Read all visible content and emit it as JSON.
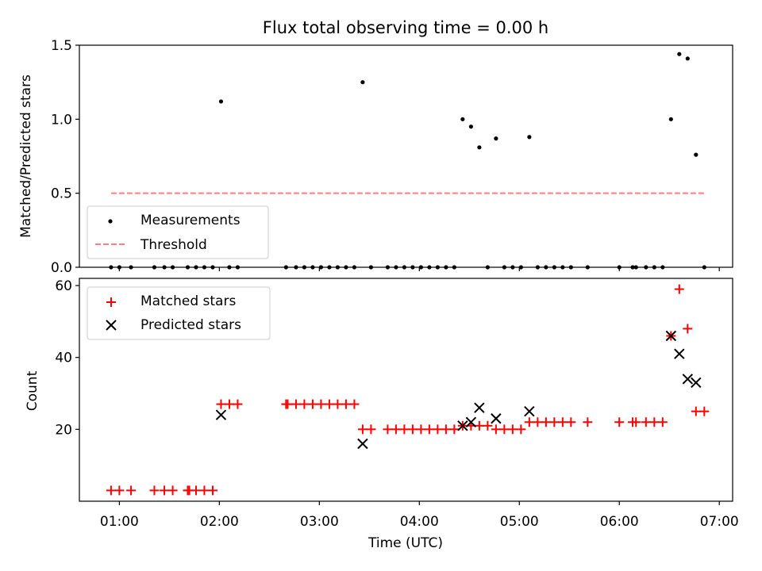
{
  "chart_data": [
    {
      "type": "scatter",
      "title": "Flux total observing time = 0.00 h",
      "xlabel": "",
      "ylabel": "Matched/Predicted stars",
      "xlim": [
        "00:36",
        "07:08"
      ],
      "ylim": [
        0,
        1.5
      ],
      "yticks": [
        0.0,
        0.5,
        1.0,
        1.5
      ],
      "ytick_labels": [
        "0.0",
        "0.5",
        "1.0",
        "1.5"
      ],
      "grid": false,
      "legend": "lower-left",
      "series": [
        {
          "name": "Measurements",
          "kind": "scatter",
          "marker": "dot",
          "color": "#000000",
          "points": [
            [
              "00:55",
              0
            ],
            [
              "01:00",
              0
            ],
            [
              "01:07",
              0
            ],
            [
              "01:21",
              0
            ],
            [
              "01:27",
              0
            ],
            [
              "01:32",
              0
            ],
            [
              "01:41",
              0
            ],
            [
              "01:46",
              0
            ],
            [
              "01:51",
              0
            ],
            [
              "01:56",
              0
            ],
            [
              "02:01",
              1.12
            ],
            [
              "02:06",
              0
            ],
            [
              "02:11",
              0
            ],
            [
              "02:40",
              0
            ],
            [
              "02:46",
              0
            ],
            [
              "02:51",
              0
            ],
            [
              "02:56",
              0
            ],
            [
              "03:01",
              0
            ],
            [
              "03:06",
              0
            ],
            [
              "03:11",
              0
            ],
            [
              "03:16",
              0
            ],
            [
              "03:21",
              0
            ],
            [
              "03:26",
              1.25
            ],
            [
              "03:31",
              0
            ],
            [
              "03:41",
              0
            ],
            [
              "03:46",
              0
            ],
            [
              "03:51",
              0
            ],
            [
              "03:56",
              0
            ],
            [
              "04:01",
              0
            ],
            [
              "04:06",
              0
            ],
            [
              "04:11",
              0
            ],
            [
              "04:16",
              0
            ],
            [
              "04:21",
              0
            ],
            [
              "04:26",
              1.0
            ],
            [
              "04:31",
              0.95
            ],
            [
              "04:36",
              0.81
            ],
            [
              "04:41",
              0
            ],
            [
              "04:46",
              0.87
            ],
            [
              "04:51",
              0
            ],
            [
              "04:56",
              0
            ],
            [
              "05:01",
              0
            ],
            [
              "05:06",
              0.88
            ],
            [
              "05:11",
              0
            ],
            [
              "05:16",
              0
            ],
            [
              "05:21",
              0
            ],
            [
              "05:26",
              0
            ],
            [
              "05:31",
              0
            ],
            [
              "05:41",
              0
            ],
            [
              "06:00",
              0
            ],
            [
              "06:08",
              0
            ],
            [
              "06:10",
              0
            ],
            [
              "06:16",
              0
            ],
            [
              "06:21",
              0
            ],
            [
              "06:26",
              0
            ],
            [
              "06:31",
              1.0
            ],
            [
              "06:36",
              1.44
            ],
            [
              "06:41",
              1.41
            ],
            [
              "06:46",
              0.76
            ],
            [
              "06:51",
              0
            ]
          ]
        },
        {
          "name": "Threshold",
          "kind": "line",
          "style": "dashed",
          "color": "#ff7f7f",
          "points": [
            [
              "00:55",
              0.5
            ],
            [
              "06:51",
              0.5
            ]
          ]
        }
      ]
    },
    {
      "type": "scatter",
      "title": "",
      "xlabel": "Time (UTC)",
      "ylabel": "Count",
      "xlim": [
        "00:36",
        "07:08"
      ],
      "ylim": [
        0,
        62
      ],
      "yticks": [
        20,
        40,
        60
      ],
      "ytick_labels": [
        "20",
        "40",
        "60"
      ],
      "xticks": [
        "01:00",
        "02:00",
        "03:00",
        "04:00",
        "05:00",
        "06:00",
        "07:00"
      ],
      "xtick_labels": [
        "01:00",
        "02:00",
        "03:00",
        "04:00",
        "05:00",
        "06:00",
        "07:00"
      ],
      "grid": false,
      "legend": "upper-left",
      "series": [
        {
          "name": "Matched stars",
          "kind": "scatter",
          "marker": "plus",
          "color": "#ff0000",
          "points": [
            [
              "00:55",
              3
            ],
            [
              "01:00",
              3
            ],
            [
              "01:07",
              3
            ],
            [
              "01:21",
              3
            ],
            [
              "01:27",
              3
            ],
            [
              "01:32",
              3
            ],
            [
              "01:41",
              3
            ],
            [
              "01:42",
              3
            ],
            [
              "01:46",
              3
            ],
            [
              "01:51",
              3
            ],
            [
              "01:56",
              3
            ],
            [
              "02:01",
              27
            ],
            [
              "02:06",
              27
            ],
            [
              "02:11",
              27
            ],
            [
              "02:40",
              27
            ],
            [
              "02:41",
              27
            ],
            [
              "02:46",
              27
            ],
            [
              "02:51",
              27
            ],
            [
              "02:56",
              27
            ],
            [
              "03:01",
              27
            ],
            [
              "03:06",
              27
            ],
            [
              "03:11",
              27
            ],
            [
              "03:16",
              27
            ],
            [
              "03:21",
              27
            ],
            [
              "03:26",
              20
            ],
            [
              "03:31",
              20
            ],
            [
              "03:41",
              20
            ],
            [
              "03:46",
              20
            ],
            [
              "03:51",
              20
            ],
            [
              "03:56",
              20
            ],
            [
              "04:01",
              20
            ],
            [
              "04:06",
              20
            ],
            [
              "04:11",
              20
            ],
            [
              "04:16",
              20
            ],
            [
              "04:21",
              20
            ],
            [
              "04:26",
              21
            ],
            [
              "04:31",
              21
            ],
            [
              "04:36",
              21
            ],
            [
              "04:41",
              21
            ],
            [
              "04:46",
              20
            ],
            [
              "04:51",
              20
            ],
            [
              "04:56",
              20
            ],
            [
              "05:01",
              20
            ],
            [
              "05:06",
              22
            ],
            [
              "05:11",
              22
            ],
            [
              "05:16",
              22
            ],
            [
              "05:21",
              22
            ],
            [
              "05:26",
              22
            ],
            [
              "05:31",
              22
            ],
            [
              "05:41",
              22
            ],
            [
              "06:00",
              22
            ],
            [
              "06:08",
              22
            ],
            [
              "06:10",
              22
            ],
            [
              "06:16",
              22
            ],
            [
              "06:21",
              22
            ],
            [
              "06:26",
              22
            ],
            [
              "06:31",
              46
            ],
            [
              "06:36",
              59
            ],
            [
              "06:41",
              48
            ],
            [
              "06:46",
              25
            ],
            [
              "06:51",
              25
            ]
          ]
        },
        {
          "name": "Predicted stars",
          "kind": "scatter",
          "marker": "x",
          "color": "#000000",
          "points": [
            [
              "02:01",
              24
            ],
            [
              "03:26",
              16
            ],
            [
              "04:26",
              21
            ],
            [
              "04:31",
              22
            ],
            [
              "04:36",
              26
            ],
            [
              "04:46",
              23
            ],
            [
              "05:06",
              25
            ],
            [
              "06:31",
              46
            ],
            [
              "06:36",
              41
            ],
            [
              "06:41",
              34
            ],
            [
              "06:46",
              33
            ]
          ]
        }
      ]
    }
  ]
}
